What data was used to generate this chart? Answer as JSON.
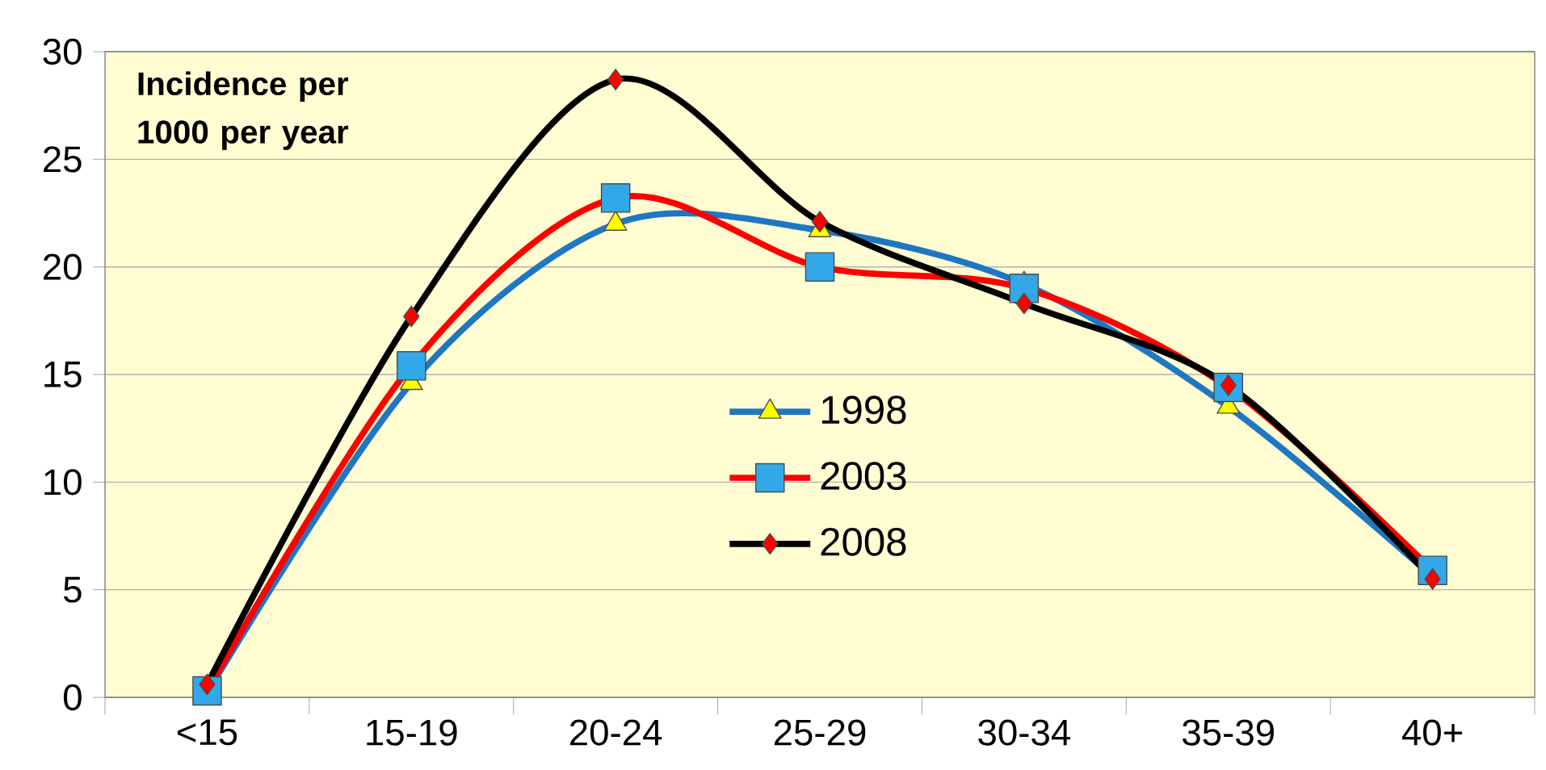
{
  "chart_data": {
    "type": "line",
    "categories": [
      "<15",
      "15-19",
      "20-24",
      "25-29",
      "30-34",
      "35-39",
      "40+"
    ],
    "series": [
      {
        "name": "1998",
        "color": "#1f77c4",
        "marker": "triangle",
        "values": [
          0.2,
          14.6,
          22.0,
          21.7,
          19.2,
          13.5,
          5.6
        ]
      },
      {
        "name": "2003",
        "color": "#ff0000",
        "marker": "square",
        "values": [
          0.3,
          15.4,
          23.2,
          20.0,
          19.0,
          14.4,
          5.9
        ]
      },
      {
        "name": "2008",
        "color": "#000000",
        "marker": "diamond",
        "values": [
          0.6,
          17.7,
          28.7,
          22.1,
          18.3,
          14.5,
          5.5
        ]
      }
    ],
    "ylim": [
      0,
      30
    ],
    "yticks": [
      0,
      5,
      10,
      15,
      20,
      25,
      30
    ],
    "grid": "y",
    "legend": "center",
    "line_style": "solid",
    "annotations": [
      "**Incidence per 1000 per year**"
    ]
  }
}
